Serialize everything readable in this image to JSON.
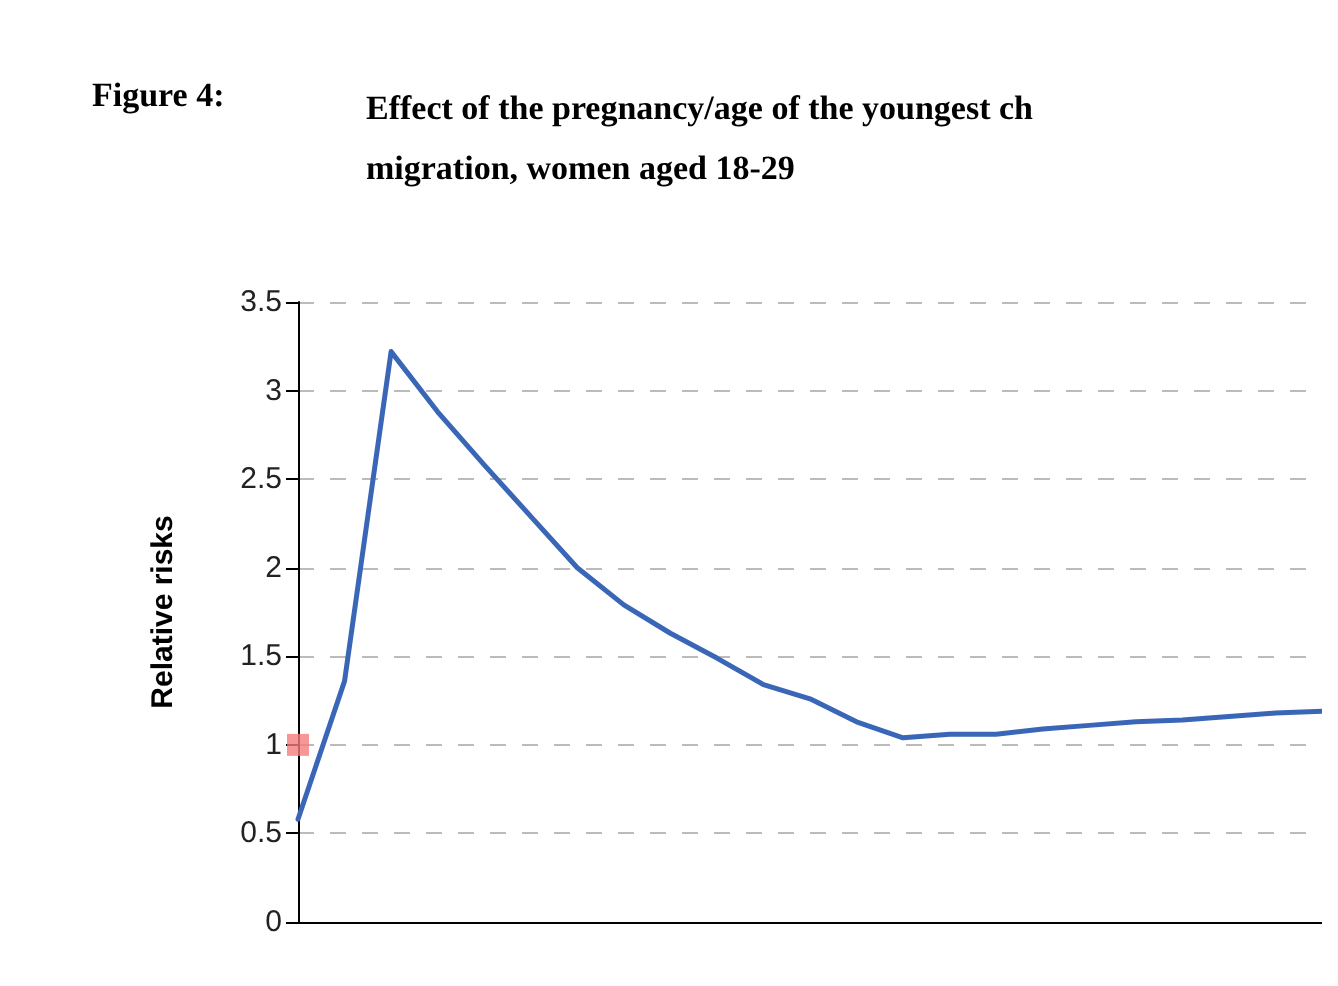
{
  "chart_data": {
    "type": "line",
    "title": "Figure 4:",
    "subtitle": "Effect of the pregnancy/age of the youngest ch\nmigration, women aged 18-29",
    "ylabel": "Relative risks",
    "categories": [
      null,
      null,
      null,
      null,
      null,
      null,
      null,
      null,
      null,
      null,
      null,
      null,
      null,
      null,
      null,
      null,
      null,
      null,
      null,
      null,
      null,
      null,
      null
    ],
    "series": [
      {
        "color": "#3a66b8",
        "marker": "none",
        "values": [
          0.58,
          1.36,
          3.22,
          2.88,
          2.58,
          2.29,
          2.0,
          1.79,
          1.63,
          1.49,
          1.34,
          1.26,
          1.13,
          1.04,
          1.06,
          1.06,
          1.09,
          1.11,
          1.13,
          1.14,
          1.16,
          1.18,
          1.19
        ]
      },
      {
        "type": "scatter",
        "color": "#f47c7c",
        "marker": "square",
        "values": [
          1,
          null,
          null,
          null,
          null,
          null,
          null,
          null,
          null,
          null,
          null,
          null,
          null,
          null,
          null,
          null,
          null,
          null,
          null,
          null,
          null,
          null,
          null
        ]
      }
    ],
    "ylim": [
      0,
      3.5
    ],
    "yticks": [
      0,
      0.5,
      1,
      1.5,
      2,
      2.5,
      3,
      3.5
    ],
    "grid": "y",
    "tick_labels": "y"
  }
}
